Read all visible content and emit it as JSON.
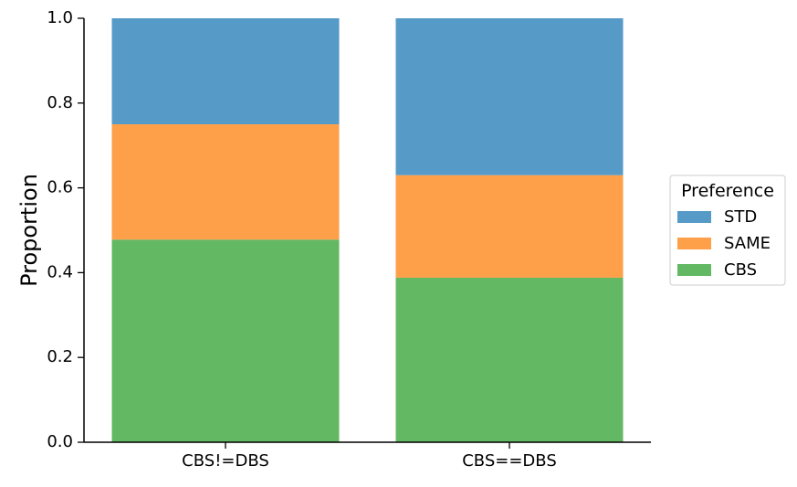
{
  "chart_data": {
    "type": "bar",
    "stacked": true,
    "categories": [
      "CBS!=DBS",
      "CBS==DBS"
    ],
    "series": [
      {
        "name": "CBS",
        "values": [
          0.478,
          0.388
        ],
        "color": "#63b863"
      },
      {
        "name": "SAME",
        "values": [
          0.272,
          0.242
        ],
        "color": "#fe9f4a"
      },
      {
        "name": "STD",
        "values": [
          0.25,
          0.37
        ],
        "color": "#569ac8"
      }
    ],
    "title": "",
    "xlabel": "",
    "ylabel": "Proportion",
    "ylim": [
      0,
      1.0
    ],
    "yticks": [
      "0.0",
      "0.2",
      "0.4",
      "0.6",
      "0.8",
      "1.0"
    ],
    "grid": false,
    "legend": {
      "title": "Preference",
      "placement": "outside-right",
      "entries": [
        "STD",
        "SAME",
        "CBS"
      ]
    }
  }
}
